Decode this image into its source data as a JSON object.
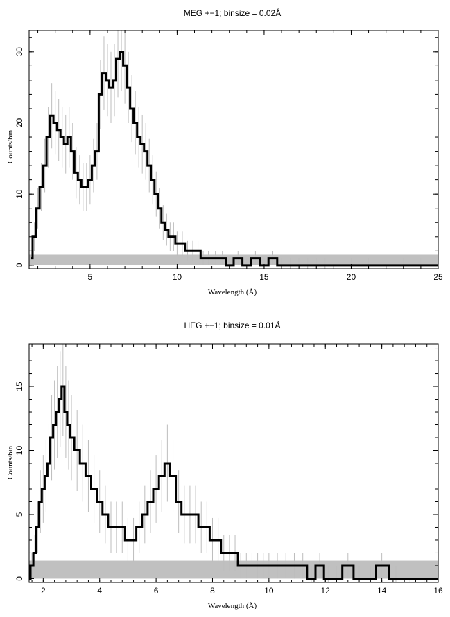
{
  "chart_data": [
    {
      "type": "line",
      "title": "MEG +−1; binsize = 0.02Å",
      "xlabel": "Wavelength (Å)",
      "ylabel": "Counts/bin",
      "xlim": [
        1.5,
        25
      ],
      "ylim": [
        -0.5,
        33
      ],
      "xticks": [
        5,
        10,
        15,
        20,
        25
      ],
      "yticks": [
        0,
        10,
        20,
        30
      ],
      "background_band": [
        0,
        1.5
      ],
      "series": [
        {
          "x": [
            1.6,
            1.8,
            2.0,
            2.2,
            2.4,
            2.6,
            2.8,
            3.0,
            3.2,
            3.4,
            3.6,
            3.8,
            4.0,
            4.2,
            4.4,
            4.6,
            4.8,
            5.0,
            5.2,
            5.4,
            5.6,
            5.8,
            6.0,
            6.2,
            6.4,
            6.6,
            6.8,
            7.0,
            7.2,
            7.4,
            7.6,
            7.8,
            8.0,
            8.2,
            8.4,
            8.6,
            8.8,
            9.0,
            9.2,
            9.4,
            9.6,
            9.8,
            10.0,
            10.3,
            10.6,
            10.9,
            11.2,
            11.5,
            11.8,
            12.2,
            12.6,
            13.0,
            13.5,
            14.0,
            14.5,
            15.0,
            15.5,
            16.0,
            16.5,
            17.0,
            17.5,
            18.0,
            18.5,
            19.0,
            20.0,
            21.0,
            22.0,
            23.0,
            24.0,
            25.0
          ],
          "y": [
            1,
            4,
            8,
            11,
            14,
            18,
            21,
            20,
            19,
            18,
            17,
            18,
            16,
            13,
            12,
            11,
            11,
            12,
            14,
            16,
            24,
            27,
            26,
            25,
            26,
            29,
            30,
            28,
            25,
            22,
            20,
            18,
            17,
            16,
            14,
            12,
            10,
            8,
            6,
            5,
            4,
            4,
            3,
            3,
            2,
            2,
            2,
            1,
            1,
            1,
            1,
            0,
            1,
            0,
            1,
            0,
            1,
            0,
            0,
            0,
            0,
            0,
            0,
            0,
            0,
            0,
            0,
            0,
            0,
            0
          ]
        }
      ]
    },
    {
      "type": "line",
      "title": "HEG +−1; binsize = 0.01Å",
      "xlabel": "Wavelength (Å)",
      "ylabel": "Counts/bin",
      "xlim": [
        1.5,
        16
      ],
      "ylim": [
        -0.3,
        18.3
      ],
      "xticks": [
        2,
        4,
        6,
        8,
        10,
        12,
        14,
        16
      ],
      "yticks": [
        0,
        5,
        10,
        15
      ],
      "background_band": [
        0,
        1.4
      ],
      "series": [
        {
          "x": [
            1.5,
            1.6,
            1.7,
            1.8,
            1.9,
            2.0,
            2.1,
            2.2,
            2.3,
            2.4,
            2.5,
            2.6,
            2.7,
            2.8,
            2.9,
            3.0,
            3.2,
            3.4,
            3.6,
            3.8,
            4.0,
            4.2,
            4.4,
            4.6,
            4.8,
            5.0,
            5.2,
            5.4,
            5.6,
            5.8,
            6.0,
            6.2,
            6.4,
            6.6,
            6.8,
            7.0,
            7.2,
            7.4,
            7.6,
            7.8,
            8.0,
            8.2,
            8.4,
            8.6,
            8.8,
            9.0,
            9.2,
            9.4,
            9.6,
            9.8,
            10.0,
            10.3,
            10.6,
            10.9,
            11.2,
            11.5,
            11.8,
            12.1,
            12.4,
            12.8,
            13.2,
            13.6,
            14.0,
            14.5,
            15.0,
            15.5,
            16.0
          ],
          "y": [
            0,
            1,
            2,
            4,
            6,
            7,
            8,
            9,
            11,
            12,
            13,
            14,
            15,
            13,
            12,
            11,
            10,
            9,
            8,
            7,
            6,
            5,
            4,
            4,
            4,
            3,
            3,
            4,
            5,
            6,
            7,
            8,
            9,
            8,
            6,
            5,
            5,
            5,
            4,
            4,
            3,
            3,
            2,
            2,
            2,
            1,
            1,
            1,
            1,
            1,
            1,
            1,
            1,
            1,
            1,
            0,
            1,
            0,
            0,
            1,
            0,
            0,
            1,
            0,
            0,
            0,
            0
          ]
        }
      ]
    }
  ]
}
